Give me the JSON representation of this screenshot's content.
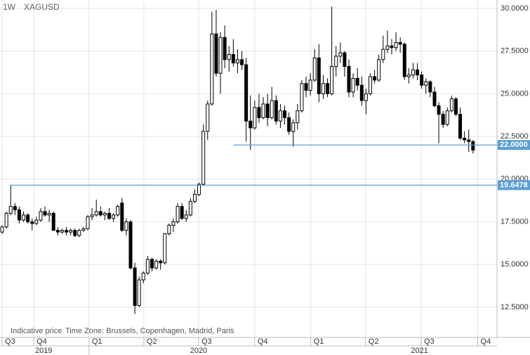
{
  "chart_data": {
    "type": "candlestick",
    "timeframe": "1W",
    "title": "XAGUSD",
    "notes": [
      "Indicative price",
      "Time Zone: Brussels, Copenhagen, Madrid, Paris"
    ],
    "up_color": "#ffffff",
    "down_color": "#000000",
    "level_color": "#5a9fd4",
    "grid": true,
    "ylim": [
      10.73,
      30.49
    ],
    "yticks": [
      {
        "value": 12.5,
        "label": "12.5000"
      },
      {
        "value": 15,
        "label": "15.0000"
      },
      {
        "value": 17.5,
        "label": "17.5000"
      },
      {
        "value": 20,
        "label": "20.0000"
      },
      {
        "value": 22.5,
        "label": "22.5000"
      },
      {
        "value": 25,
        "label": "25.0000"
      },
      {
        "value": 27.5,
        "label": "27.5000"
      },
      {
        "value": 30,
        "label": "30.0000"
      }
    ],
    "xlim": [
      -0.5,
      115.6
    ],
    "xticks": [
      {
        "value": 0,
        "label": "Q3"
      },
      {
        "value": 7.4,
        "label": "Q4"
      },
      {
        "value": 20.3,
        "label": "Q1"
      },
      {
        "value": 33.1,
        "label": "Q2"
      },
      {
        "value": 45.9,
        "label": "Q3"
      },
      {
        "value": 59.0,
        "label": "Q4"
      },
      {
        "value": 72.1,
        "label": "Q1"
      },
      {
        "value": 84.9,
        "label": "Q2"
      },
      {
        "value": 97.9,
        "label": "Q3"
      },
      {
        "value": 111.1,
        "label": "Q4"
      }
    ],
    "years": [
      {
        "value": 9.7,
        "label": "2019"
      },
      {
        "value": 45.9,
        "label": "2020"
      },
      {
        "value": 97.5,
        "label": "2021"
      }
    ],
    "year_breaks": [
      20.3,
      97.9
    ],
    "levels": [
      {
        "value": 22.0,
        "label": "22.0000",
        "from": 54
      },
      {
        "value": 19.6478,
        "label": "19.6478",
        "from": 2
      }
    ],
    "ohlc": [
      [
        16.9,
        17.3,
        16.8,
        17.2
      ],
      [
        17.2,
        18.1,
        17.1,
        18.0
      ],
      [
        18.0,
        19.65,
        17.9,
        18.4
      ],
      [
        18.4,
        18.6,
        17.9,
        18.2
      ],
      [
        18.2,
        18.4,
        17.4,
        17.6
      ],
      [
        17.6,
        18.1,
        17.5,
        17.9
      ],
      [
        17.9,
        18.0,
        17.4,
        17.5
      ],
      [
        17.5,
        17.7,
        17.0,
        17.4
      ],
      [
        17.4,
        17.8,
        17.3,
        17.6
      ],
      [
        17.6,
        18.3,
        17.5,
        18.1
      ],
      [
        18.1,
        18.4,
        17.8,
        17.9
      ],
      [
        17.9,
        18.2,
        17.5,
        18.0
      ],
      [
        18.0,
        18.1,
        17.0,
        17.0
      ],
      [
        17.0,
        17.2,
        16.7,
        16.9
      ],
      [
        16.9,
        17.1,
        16.8,
        17.0
      ],
      [
        17.0,
        17.2,
        16.7,
        16.9
      ],
      [
        16.9,
        17.1,
        16.7,
        17.0
      ],
      [
        17.0,
        17.1,
        16.6,
        16.7
      ],
      [
        16.7,
        17.1,
        16.6,
        17.0
      ],
      [
        17.0,
        17.2,
        16.9,
        17.1
      ],
      [
        17.1,
        17.9,
        17.0,
        17.8
      ],
      [
        17.8,
        18.3,
        17.6,
        17.9
      ],
      [
        17.9,
        18.8,
        17.8,
        18.1
      ],
      [
        18.1,
        18.4,
        17.8,
        17.9
      ],
      [
        17.9,
        18.1,
        17.6,
        18.0
      ],
      [
        18.0,
        18.3,
        17.6,
        17.7
      ],
      [
        17.7,
        18.0,
        17.5,
        17.9
      ],
      [
        17.9,
        18.5,
        17.8,
        18.4
      ],
      [
        18.6,
        18.9,
        16.9,
        17.0
      ],
      [
        17.0,
        17.7,
        16.7,
        17.5
      ],
      [
        17.5,
        17.6,
        14.7,
        14.8
      ],
      [
        14.8,
        15.1,
        12.1,
        12.6
      ],
      [
        12.6,
        14.3,
        12.5,
        14.1
      ],
      [
        14.1,
        14.6,
        13.9,
        14.5
      ],
      [
        14.5,
        15.5,
        14.4,
        15.3
      ],
      [
        15.3,
        15.4,
        14.6,
        14.8
      ],
      [
        14.8,
        15.3,
        14.7,
        15.2
      ],
      [
        15.2,
        15.3,
        14.7,
        15.1
      ],
      [
        15.1,
        16.8,
        15.0,
        16.8
      ],
      [
        16.8,
        17.4,
        16.7,
        17.3
      ],
      [
        17.3,
        17.7,
        16.9,
        17.5
      ],
      [
        17.5,
        18.6,
        17.4,
        18.4
      ],
      [
        18.4,
        18.6,
        17.6,
        17.7
      ],
      [
        17.7,
        18.2,
        17.5,
        17.9
      ],
      [
        17.9,
        18.9,
        17.8,
        18.7
      ],
      [
        18.7,
        19.4,
        18.6,
        19.1
      ],
      [
        19.1,
        19.8,
        19.0,
        19.7
      ],
      [
        19.7,
        23.2,
        19.6,
        22.8
      ],
      [
        22.8,
        24.6,
        22.3,
        24.4
      ],
      [
        24.4,
        29.8,
        24.3,
        28.5
      ],
      [
        28.5,
        29.9,
        26.0,
        26.2
      ],
      [
        26.2,
        28.6,
        25.0,
        28.3
      ],
      [
        28.3,
        29.0,
        26.5,
        27.0
      ],
      [
        27.0,
        27.8,
        26.3,
        27.3
      ],
      [
        27.3,
        28.2,
        26.6,
        26.8
      ],
      [
        26.8,
        27.6,
        26.2,
        27.0
      ],
      [
        27.0,
        27.5,
        26.4,
        26.7
      ],
      [
        26.7,
        27.1,
        22.2,
        23.4
      ],
      [
        23.4,
        24.9,
        21.7,
        23.0
      ],
      [
        23.0,
        24.6,
        22.9,
        24.2
      ],
      [
        24.2,
        25.0,
        23.3,
        23.6
      ],
      [
        23.6,
        24.8,
        23.5,
        24.4
      ],
      [
        24.4,
        25.0,
        23.1,
        23.6
      ],
      [
        23.6,
        25.4,
        23.5,
        24.6
      ],
      [
        24.6,
        24.9,
        23.2,
        23.4
      ],
      [
        23.4,
        24.4,
        23.0,
        24.0
      ],
      [
        24.0,
        24.3,
        23.2,
        23.6
      ],
      [
        23.6,
        23.9,
        22.6,
        22.8
      ],
      [
        22.8,
        23.5,
        21.9,
        23.3
      ],
      [
        23.3,
        24.4,
        22.9,
        24.0
      ],
      [
        24.0,
        25.8,
        23.9,
        25.6
      ],
      [
        25.6,
        26.0,
        24.8,
        25.2
      ],
      [
        25.2,
        26.2,
        24.9,
        25.8
      ],
      [
        25.8,
        27.6,
        25.7,
        27.1
      ],
      [
        27.1,
        27.9,
        24.5,
        25.0
      ],
      [
        25.0,
        26.1,
        24.7,
        25.6
      ],
      [
        25.6,
        25.9,
        24.8,
        25.0
      ],
      [
        25.0,
        30.1,
        24.9,
        26.6
      ],
      [
        26.6,
        27.8,
        26.0,
        27.2
      ],
      [
        27.2,
        28.0,
        26.8,
        27.4
      ],
      [
        27.4,
        27.5,
        26.0,
        26.6
      ],
      [
        26.6,
        27.0,
        24.8,
        25.1
      ],
      [
        25.1,
        26.2,
        24.8,
        25.9
      ],
      [
        25.9,
        26.5,
        25.2,
        25.5
      ],
      [
        25.5,
        26.0,
        24.3,
        24.6
      ],
      [
        24.6,
        25.3,
        23.8,
        25.0
      ],
      [
        25.0,
        26.2,
        24.9,
        26.0
      ],
      [
        26.0,
        26.4,
        25.6,
        25.8
      ],
      [
        25.8,
        27.3,
        25.7,
        27.0
      ],
      [
        27.0,
        28.4,
        26.8,
        27.6
      ],
      [
        27.6,
        28.7,
        27.4,
        27.8
      ],
      [
        27.8,
        28.2,
        27.3,
        27.7
      ],
      [
        27.7,
        28.6,
        27.5,
        28.0
      ],
      [
        28.0,
        28.3,
        27.4,
        27.9
      ],
      [
        27.9,
        28.0,
        25.8,
        26.0
      ],
      [
        26.0,
        26.5,
        25.6,
        26.1
      ],
      [
        26.1,
        26.8,
        25.9,
        26.4
      ],
      [
        26.4,
        26.8,
        25.8,
        26.1
      ],
      [
        26.1,
        26.3,
        25.3,
        25.5
      ],
      [
        25.5,
        25.9,
        25.0,
        25.7
      ],
      [
        25.7,
        25.8,
        24.8,
        25.1
      ],
      [
        25.1,
        25.4,
        24.2,
        24.3
      ],
      [
        24.3,
        24.5,
        22.1,
        23.8
      ],
      [
        23.8,
        24.0,
        23.0,
        23.2
      ],
      [
        23.2,
        24.2,
        23.1,
        24.0
      ],
      [
        24.0,
        24.9,
        23.9,
        24.7
      ],
      [
        24.7,
        24.8,
        23.7,
        23.8
      ],
      [
        23.8,
        24.2,
        22.3,
        22.4
      ],
      [
        22.4,
        22.8,
        22.1,
        22.3
      ],
      [
        22.3,
        22.9,
        21.6,
        22.2
      ],
      [
        22.2,
        22.3,
        21.5,
        21.7
      ]
    ]
  }
}
